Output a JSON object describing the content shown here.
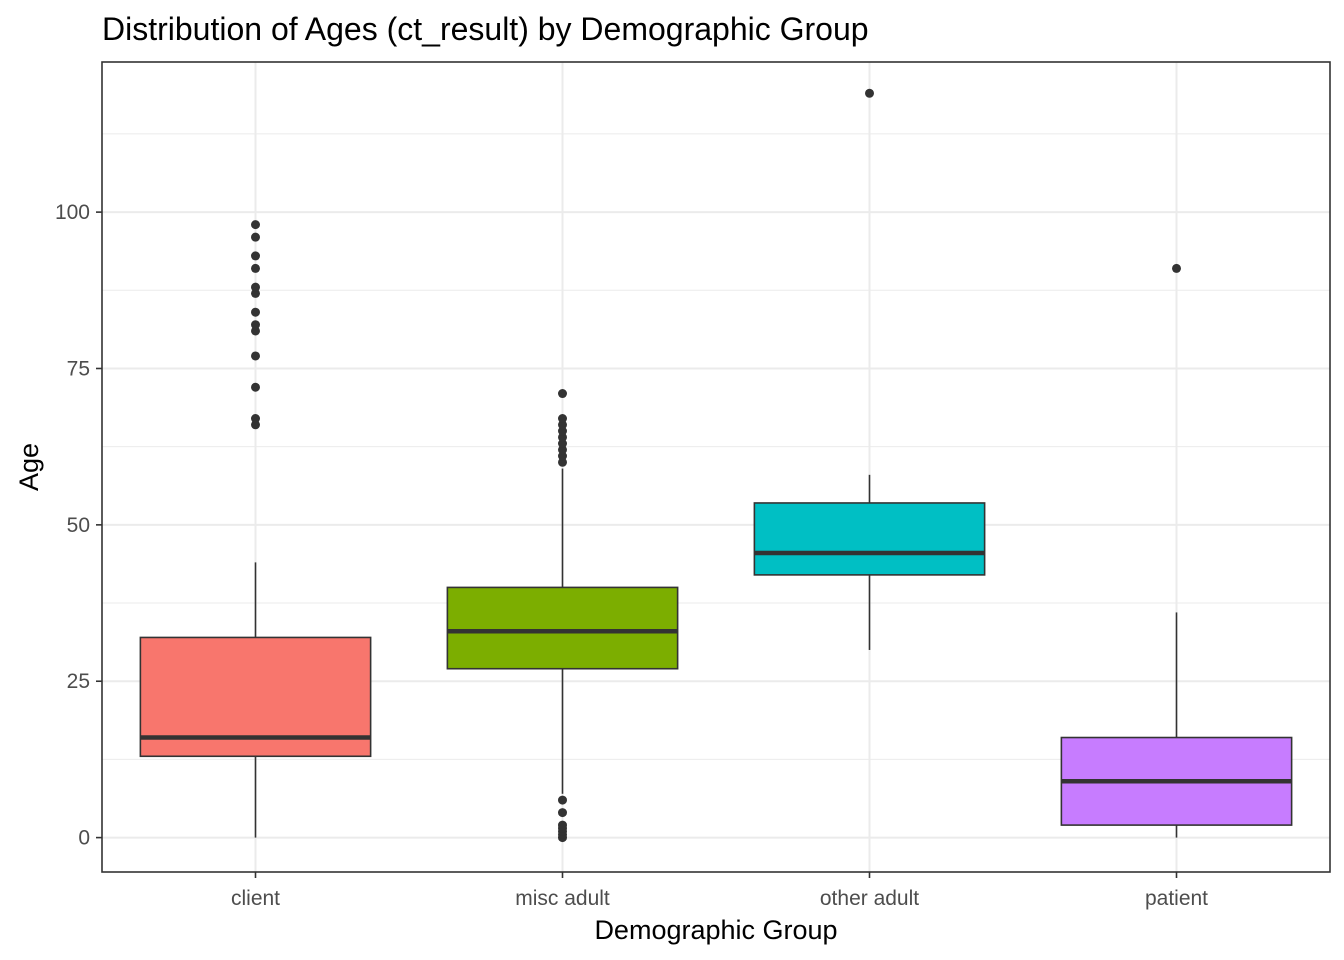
{
  "chart_data": {
    "type": "boxplot",
    "title": "Distribution of Ages (ct_result) by Demographic Group",
    "xlabel": "Demographic Group",
    "ylabel": "Age",
    "ylim": [
      -5.5,
      124
    ],
    "y_ticks": [
      0,
      25,
      50,
      75,
      100
    ],
    "y_tick_labels": [
      "0",
      "25",
      "50",
      "75",
      "100"
    ],
    "y_minor_ticks": [
      12.5,
      37.5,
      62.5,
      87.5,
      112.5
    ],
    "grid": true,
    "legend": "none",
    "categories": [
      "client",
      "misc adult",
      "other adult",
      "patient"
    ],
    "boxes": [
      {
        "category": "client",
        "color": "#F8766D",
        "whisker_low": 0,
        "q1": 13,
        "median": 16,
        "q3": 32,
        "whisker_high": 44,
        "outliers": [
          66,
          67,
          72,
          77,
          81,
          82,
          84,
          87,
          88,
          91,
          93,
          96,
          98
        ]
      },
      {
        "category": "misc adult",
        "color": "#7CAE00",
        "whisker_low": 7,
        "q1": 27,
        "median": 33,
        "q3": 40,
        "whisker_high": 59,
        "outliers": [
          0,
          0.5,
          1,
          1.5,
          2,
          4,
          6,
          60,
          61,
          62,
          63,
          64,
          65,
          66,
          67,
          71
        ]
      },
      {
        "category": "other adult",
        "color": "#00BFC4",
        "whisker_low": 30,
        "q1": 42,
        "median": 45.5,
        "q3": 53.5,
        "whisker_high": 58,
        "outliers": [
          119
        ]
      },
      {
        "category": "patient",
        "color": "#C77CFF",
        "whisker_low": 0,
        "q1": 2,
        "median": 9,
        "q3": 16,
        "whisker_high": 36,
        "outliers": [
          91
        ]
      }
    ]
  }
}
